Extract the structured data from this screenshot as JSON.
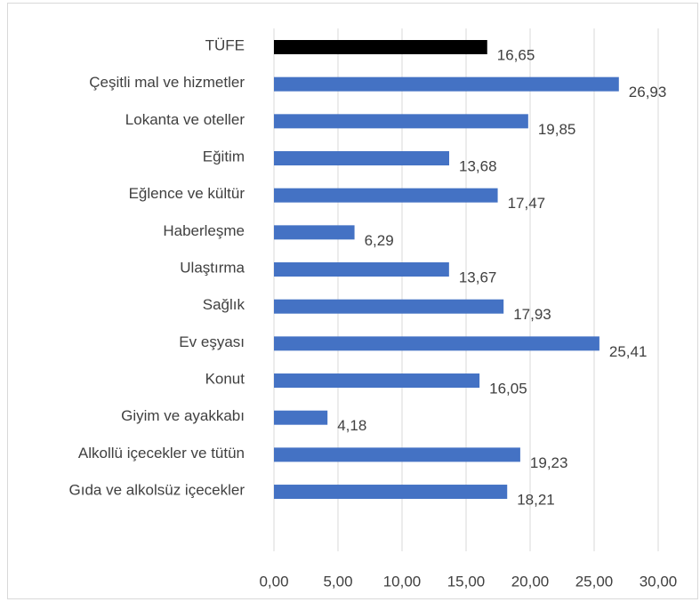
{
  "chart_data": {
    "type": "barh",
    "categories": [
      "TÜFE",
      "Çeşitli mal ve hizmetler",
      "Lokanta ve oteller",
      "Eğitim",
      "Eğlence ve kültür",
      "Haberleşme",
      "Ulaştırma",
      "Sağlık",
      "Ev eşyası",
      "Konut",
      "Giyim ve ayakkabı",
      "Alkollü içecekler ve tütün",
      "Gıda ve alkolsüz içecekler"
    ],
    "values": [
      16.65,
      26.93,
      19.85,
      13.68,
      17.47,
      6.29,
      13.67,
      17.93,
      25.41,
      16.05,
      4.18,
      19.23,
      18.21
    ],
    "value_labels": [
      "16,65",
      "26,93",
      "19,85",
      "13,68",
      "17,47",
      "6,29",
      "13,67",
      "17,93",
      "25,41",
      "16,05",
      "4,18",
      "19,23",
      "18,21"
    ],
    "colors": [
      "#000000",
      "#4472c4",
      "#4472c4",
      "#4472c4",
      "#4472c4",
      "#4472c4",
      "#4472c4",
      "#4472c4",
      "#4472c4",
      "#4472c4",
      "#4472c4",
      "#4472c4",
      "#4472c4"
    ],
    "xlim": [
      0,
      30
    ],
    "xticks": [
      {
        "value": 0,
        "label": "0,00"
      },
      {
        "value": 5,
        "label": "5,00"
      },
      {
        "value": 10,
        "label": "10,00"
      },
      {
        "value": 15,
        "label": "15,00"
      },
      {
        "value": 20,
        "label": "20,00"
      },
      {
        "value": 25,
        "label": "25,00"
      },
      {
        "value": 30,
        "label": "30,00"
      }
    ],
    "grid": true
  }
}
